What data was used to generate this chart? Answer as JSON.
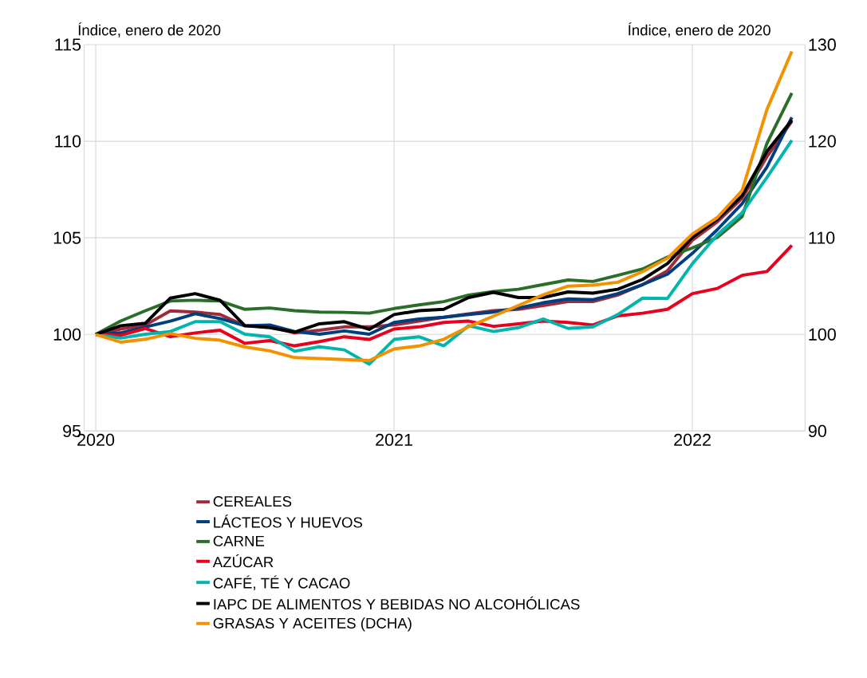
{
  "chart_data": {
    "type": "line",
    "ylabel": "Índice, enero de 2020",
    "y2label": "Índice, enero de 2020",
    "x": [
      "2020-01",
      "2020-02",
      "2020-03",
      "2020-04",
      "2020-05",
      "2020-06",
      "2020-07",
      "2020-08",
      "2020-09",
      "2020-10",
      "2020-11",
      "2020-12",
      "2021-01",
      "2021-02",
      "2021-03",
      "2021-04",
      "2021-05",
      "2021-06",
      "2021-07",
      "2021-08",
      "2021-09",
      "2021-10",
      "2021-11",
      "2021-12",
      "2022-01",
      "2022-02",
      "2022-03",
      "2022-04",
      "2022-05"
    ],
    "xlim": [
      "2019-12-17",
      "2022-05-17"
    ],
    "xticks": [
      {
        "value": "2020-01",
        "label": "2020"
      },
      {
        "value": "2021-01",
        "label": "2021"
      },
      {
        "value": "2022-01",
        "label": "2022"
      }
    ],
    "ylim": [
      95,
      115
    ],
    "yticks": [
      95,
      100,
      105,
      110,
      115
    ],
    "y2lim": [
      90,
      130
    ],
    "y2ticks": [
      90,
      100,
      110,
      120,
      130
    ],
    "grid": true,
    "legend": "bottom",
    "line_style": "solid",
    "marker": "none",
    "series": [
      {
        "name": "CEREALES",
        "color": "#9e2a3a",
        "values": [
          100,
          100.28,
          100.49,
          101.22,
          101.16,
          101.03,
          100.45,
          100.39,
          100.08,
          100.22,
          100.39,
          100.39,
          100.49,
          100.69,
          100.89,
          101.07,
          101.23,
          101.3,
          101.5,
          101.7,
          101.7,
          102.04,
          102.58,
          103.3,
          104.88,
          105.83,
          107.05,
          109.2,
          111.03
        ]
      },
      {
        "name": "LÁCTEOS Y HUEVOS",
        "color": "#003f7f",
        "values": [
          100,
          100.08,
          100.39,
          100.69,
          101.07,
          100.82,
          100.45,
          100.49,
          100.15,
          100.01,
          100.18,
          100.01,
          100.62,
          100.8,
          100.89,
          101.03,
          101.16,
          101.37,
          101.64,
          101.84,
          101.8,
          102.11,
          102.58,
          103.12,
          104.2,
          105.42,
          106.77,
          108.67,
          111.24
        ]
      },
      {
        "name": "CARNE",
        "color": "#2a6e2a",
        "values": [
          100,
          100.69,
          101.23,
          101.73,
          101.77,
          101.73,
          101.3,
          101.37,
          101.23,
          101.16,
          101.14,
          101.1,
          101.34,
          101.53,
          101.7,
          102.04,
          102.22,
          102.34,
          102.58,
          102.82,
          102.74,
          103.06,
          103.39,
          104.0,
          104.48,
          105.02,
          106.1,
          109.9,
          112.5
        ]
      },
      {
        "name": "AZÚCAR",
        "color": "#e8001c",
        "values": [
          100,
          99.95,
          100.31,
          99.88,
          100.08,
          100.22,
          99.54,
          99.68,
          99.41,
          99.63,
          99.88,
          99.74,
          100.28,
          100.39,
          100.62,
          100.69,
          100.42,
          100.55,
          100.69,
          100.62,
          100.49,
          100.96,
          101.1,
          101.3,
          102.11,
          102.38,
          103.06,
          103.26,
          104.61
        ]
      },
      {
        "name": "CAFÉ, TÉ Y CACAO",
        "color": "#00b5ad",
        "values": [
          100,
          99.81,
          100.01,
          100.15,
          100.66,
          100.66,
          100.01,
          99.88,
          99.13,
          99.36,
          99.2,
          98.46,
          99.74,
          99.88,
          99.41,
          100.45,
          100.15,
          100.35,
          100.8,
          100.31,
          100.39,
          101.03,
          101.88,
          101.86,
          103.66,
          105.15,
          106.3,
          108.13,
          110.05
        ]
      },
      {
        "name": "IAPC DE ALIMENTOS Y BEBIDAS NO ALCOHÓLICAS",
        "color": "#000000",
        "values": [
          100,
          100.45,
          100.58,
          101.88,
          102.11,
          101.77,
          100.45,
          100.35,
          100.12,
          100.55,
          100.66,
          100.26,
          101.03,
          101.23,
          101.3,
          101.91,
          102.18,
          101.91,
          101.91,
          102.2,
          102.14,
          102.34,
          102.85,
          103.67,
          105.02,
          105.96,
          107.18,
          109.48,
          111.1
        ]
      },
      {
        "name": "GRASAS Y ACEITES (DCHA)",
        "color": "#f39200",
        "axis": "y2",
        "values": [
          100,
          99.2,
          99.5,
          100.1,
          99.6,
          99.4,
          98.7,
          98.3,
          97.6,
          97.5,
          97.4,
          97.3,
          98.5,
          98.8,
          99.5,
          100.8,
          101.9,
          103.0,
          104.1,
          105.0,
          105.1,
          105.4,
          106.5,
          107.9,
          110.4,
          112.1,
          114.9,
          123.3,
          129.3
        ]
      }
    ]
  }
}
